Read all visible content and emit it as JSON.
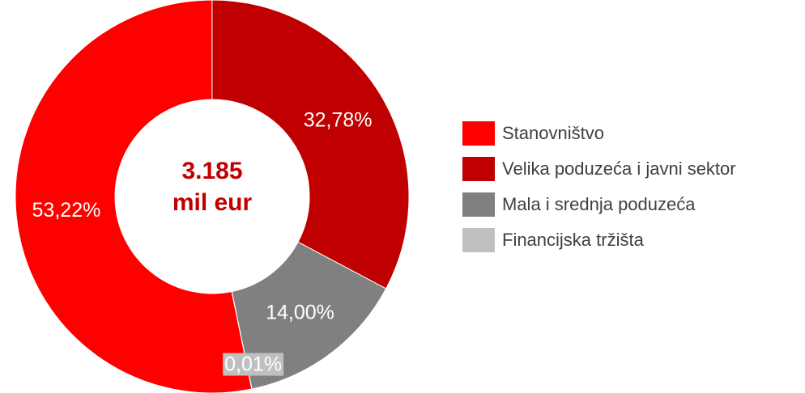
{
  "chart_data": {
    "type": "donut",
    "center_text": [
      "3.185",
      "mil eur"
    ],
    "categories": [
      "Stanovništvo",
      "Velika poduzeća i javni sektor",
      "Mala i srednja poduzeća",
      "Financijska tržišta"
    ],
    "values": [
      53.22,
      32.78,
      14.0,
      0.01
    ],
    "value_labels": [
      "53,22%",
      "32,78%",
      "14,00%",
      "0,01%"
    ],
    "colors": [
      "#ff0000",
      "#c00000",
      "#808080",
      "#c0c0c0"
    ],
    "legend": "right"
  }
}
